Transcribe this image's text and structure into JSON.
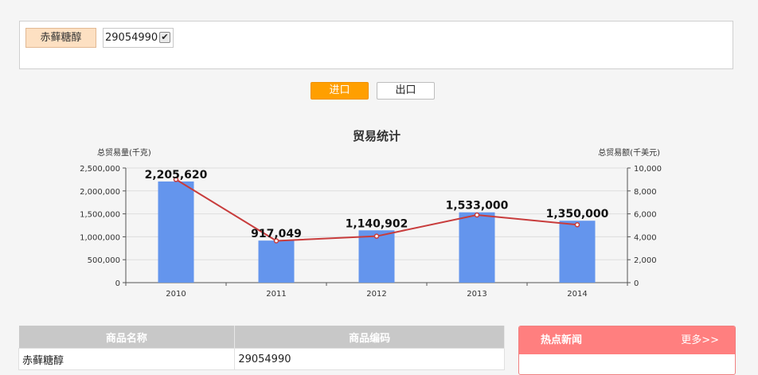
{
  "filter": {
    "product_tag": "赤藓糖醇",
    "code_value": "29054990",
    "checked": "✔"
  },
  "buttons": {
    "import_label": "进口",
    "export_label": "出口"
  },
  "chart_data": {
    "type": "bar+line",
    "title": "贸易统计",
    "categories": [
      "2010",
      "2011",
      "2012",
      "2013",
      "2014"
    ],
    "series": [
      {
        "kind": "bar",
        "axis": "left",
        "values": [
          2205620,
          917049,
          1140902,
          1533000,
          1350000
        ],
        "data_labels": [
          "2,205,620",
          "917,049",
          "1,140,902",
          "1,533,000",
          "1,350,000"
        ],
        "color": "#6495ed"
      },
      {
        "kind": "line",
        "axis": "right",
        "values": [
          9000,
          3650,
          4050,
          5900,
          5050
        ],
        "color": "#c83c3c"
      }
    ],
    "y_left": {
      "label": "总贸易量(千克)",
      "range": [
        0,
        2500000
      ],
      "ticks": [
        "0",
        "500,000",
        "1,000,000",
        "1,500,000",
        "2,000,000",
        "2,500,000"
      ]
    },
    "y_right": {
      "label": "总贸易额(千美元)",
      "range": [
        0,
        10000
      ],
      "ticks": [
        "0",
        "2,000",
        "4,000",
        "6,000",
        "8,000",
        "10,000"
      ]
    },
    "grid": true
  },
  "table": {
    "headers": [
      "商品名称",
      "商品编码"
    ],
    "rows": [
      [
        "赤藓糖醇",
        "29054990"
      ]
    ]
  },
  "news": {
    "title": "热点新闻",
    "more": "更多>>"
  }
}
